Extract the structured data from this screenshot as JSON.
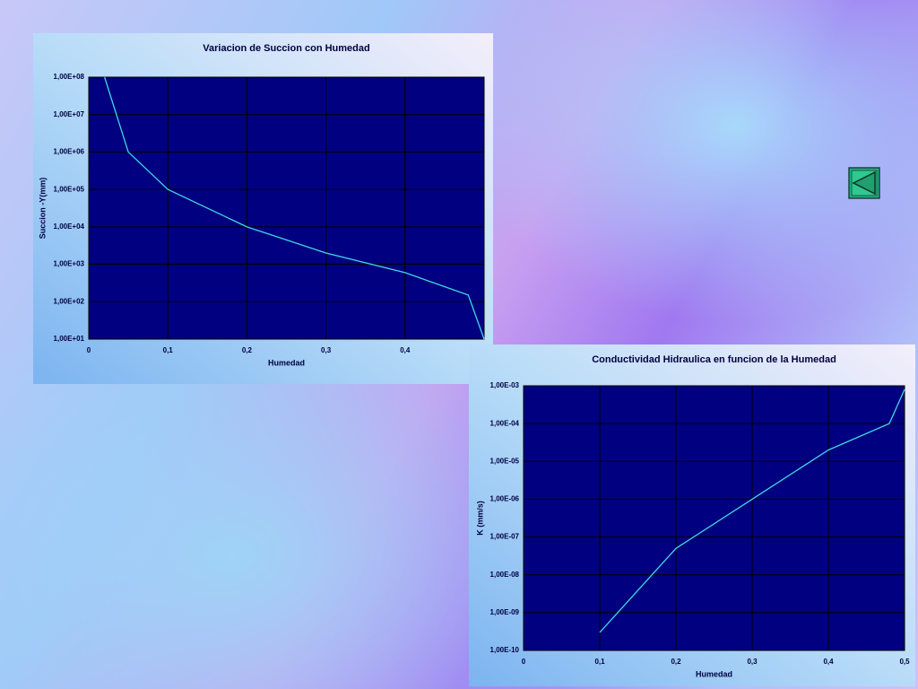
{
  "chart_data": [
    {
      "type": "line",
      "title": "Variacion de Succion  con Humedad",
      "x_label": "Humedad",
      "y_label": "Succion -Y(mm)",
      "x": [
        0.02,
        0.05,
        0.1,
        0.2,
        0.3,
        0.4,
        0.48,
        0.5
      ],
      "series": [
        {
          "color": "#40d8e0",
          "values": [
            100000000,
            1000000,
            100000,
            10000,
            2000,
            600,
            150,
            10
          ]
        }
      ],
      "xlim": [
        0,
        0.5
      ],
      "xticks": [
        0,
        {
          "value": 0.1,
          "label": "0,1"
        },
        {
          "value": 0.2,
          "label": "0,2"
        },
        {
          "value": 0.3,
          "label": "0,3"
        },
        {
          "value": 0.4,
          "label": "0,4"
        }
      ],
      "ylim": [
        10,
        100000000
      ],
      "log_y": true,
      "grid": true,
      "yticks": [
        {
          "value": 10,
          "label": "1,00E+01"
        },
        {
          "value": 100,
          "label": "1,00E+02"
        },
        {
          "value": 1000,
          "label": "1,00E+03"
        },
        {
          "value": 10000,
          "label": "1,00E+04"
        },
        {
          "value": 100000,
          "label": "1,00E+05"
        },
        {
          "value": 1000000,
          "label": "1,00E+06"
        },
        {
          "value": 10000000,
          "label": "1,00E+07"
        },
        {
          "value": 100000000,
          "label": "1,00E+08"
        }
      ]
    },
    {
      "type": "line",
      "title": "Conductividad Hidraulica en funcion de la Humedad",
      "x_label": "Humedad",
      "y_label": "K (mm/s)",
      "x": [
        0.1,
        0.2,
        0.3,
        0.4,
        0.48,
        0.5
      ],
      "series": [
        {
          "color": "#40d8e0",
          "values": [
            3e-10,
            5e-08,
            1e-06,
            2e-05,
            0.0001,
            0.0008
          ]
        }
      ],
      "xlim": [
        0,
        0.5
      ],
      "xticks": [
        0,
        {
          "value": 0.1,
          "label": "0,1"
        },
        {
          "value": 0.2,
          "label": "0,2"
        },
        {
          "value": 0.3,
          "label": "0,3"
        },
        {
          "value": 0.4,
          "label": "0,4"
        },
        {
          "value": 0.5,
          "label": "0,5"
        }
      ],
      "ylim": [
        1e-10,
        0.001
      ],
      "log_y": true,
      "grid": true,
      "yticks": [
        {
          "value": 1e-10,
          "label": "1,00E-10"
        },
        {
          "value": 1e-09,
          "label": "1,00E-09"
        },
        {
          "value": 1e-08,
          "label": "1,00E-08"
        },
        {
          "value": 1e-07,
          "label": "1,00E-07"
        },
        {
          "value": 1e-06,
          "label": "1,00E-06"
        },
        {
          "value": 1e-05,
          "label": "1,00E-05"
        },
        {
          "value": 0.0001,
          "label": "1,00E-04"
        },
        {
          "value": 0.001,
          "label": "1,00E-03"
        }
      ]
    }
  ]
}
